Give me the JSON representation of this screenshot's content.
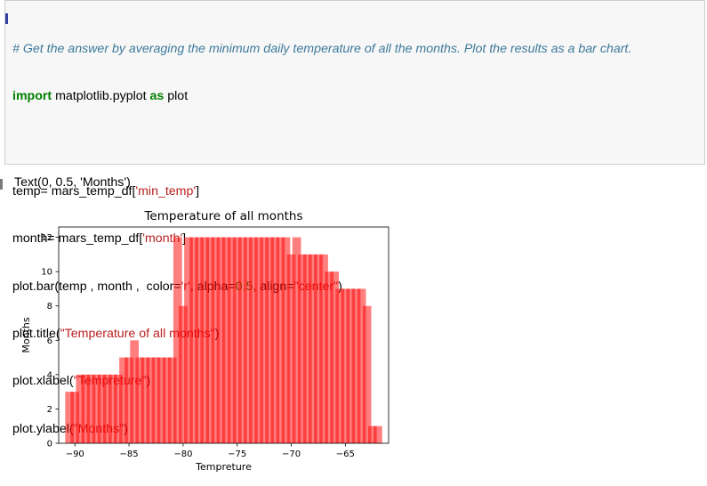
{
  "cell": {
    "comment": "# Get the answer by averaging the minimum daily temperature of all the months. Plot the results as a bar chart.",
    "import_kw1": "import",
    "import_mod": " matplotlib.pyplot ",
    "import_kw2": "as",
    "import_alias": " plot",
    "line_temp_a": "temp= mars_temp_df[",
    "line_temp_s": "'min_temp'",
    "line_temp_b": "]",
    "line_month_a": "month= mars_temp_df[",
    "line_month_s": "'month'",
    "line_month_b": "]",
    "bar_a": "plot.bar(temp , month ,  color=",
    "bar_s1": "'r'",
    "bar_b": ", alpha=",
    "bar_n": "0.5",
    "bar_c": ", align=",
    "bar_s2": "\"center\"",
    "bar_d": ")",
    "title_a": "plot.title(",
    "title_s": "\"Temperature of all months\"",
    "title_b": ")",
    "xlabel_a": "plot.xlabel(",
    "xlabel_s": "\"Tempreture\"",
    "xlabel_b": ")",
    "ylabel_a": "plot.ylabel(",
    "ylabel_s": "\"Months\"",
    "ylabel_b": ")"
  },
  "output_text": "Text(0, 0.5, 'Months')",
  "chart_data": {
    "type": "bar",
    "title": "Temperature of all months",
    "xlabel": "Tempreture",
    "ylabel": "Months",
    "xlim": [
      -91.5,
      -61.0
    ],
    "ylim": [
      0,
      12.6
    ],
    "xticks": [
      -90,
      -85,
      -80,
      -75,
      -70,
      -65
    ],
    "xtick_labels": [
      "−90",
      "−85",
      "−80",
      "−75",
      "−70",
      "−65"
    ],
    "yticks": [
      0,
      2,
      4,
      6,
      8,
      10,
      12
    ],
    "ytick_labels": [
      "0",
      "2",
      "4",
      "6",
      "8",
      "10",
      "12"
    ],
    "bar_color": "#ff0000",
    "alpha": 0.5,
    "bar_width": 0.8,
    "grid": false,
    "x": [
      -90.5,
      -90,
      -89.5,
      -89,
      -88.5,
      -88,
      -87.5,
      -87,
      -86.5,
      -86,
      -85.5,
      -85,
      -84.5,
      -84,
      -83.5,
      -83,
      -82.5,
      -82,
      -81.5,
      -81,
      -80.5,
      -80,
      -79.5,
      -79,
      -78.5,
      -78,
      -77.5,
      -77,
      -76.5,
      -76,
      -75.5,
      -75,
      -74.5,
      -74,
      -73.5,
      -73,
      -72.5,
      -72,
      -71.5,
      -71,
      -70.5,
      -70,
      -69.5,
      -69,
      -68.5,
      -68,
      -67.5,
      -67,
      -66.5,
      -66,
      -65.5,
      -65,
      -64.5,
      -64,
      -63.5,
      -63,
      -62.5,
      -62
    ],
    "values": [
      3,
      3,
      4,
      4,
      4,
      4,
      4,
      4,
      4,
      4,
      5,
      5,
      6,
      5,
      5,
      5,
      5,
      5,
      5,
      5,
      12,
      8,
      12,
      12,
      12,
      12,
      12,
      12,
      12,
      12,
      12,
      12,
      12,
      12,
      12,
      12,
      12,
      12,
      12,
      12,
      12,
      11,
      12,
      11,
      11,
      11,
      11,
      11,
      10,
      10,
      9,
      9,
      9,
      9,
      9,
      8,
      1,
      1
    ]
  }
}
